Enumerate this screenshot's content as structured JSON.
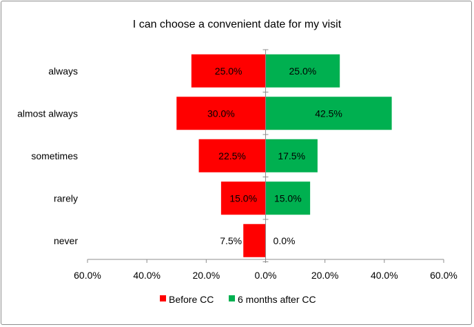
{
  "chart_data": {
    "type": "bar",
    "orientation": "horizontal-diverging",
    "title": "I can choose a convenient date for my visit",
    "categories": [
      "always",
      "almost always",
      "sometimes",
      "rarely",
      "never"
    ],
    "series": [
      {
        "name": "Before CC",
        "color": "#ff0000",
        "direction": "left",
        "values": [
          25.0,
          30.0,
          22.5,
          15.0,
          7.5
        ],
        "labels": [
          "25.0%",
          "30.0%",
          "22.5%",
          "15.0%",
          "7.5%"
        ]
      },
      {
        "name": "6 months after CC",
        "color": "#00b050",
        "direction": "right",
        "values": [
          25.0,
          42.5,
          17.5,
          15.0,
          0.0
        ],
        "labels": [
          "25.0%",
          "42.5%",
          "17.5%",
          "15.0%",
          "0.0%"
        ]
      }
    ],
    "xlim": [
      -60,
      60
    ],
    "xticks": [
      "60.0%",
      "40.0%",
      "20.0%",
      "0.0%",
      "20.0%",
      "40.0%",
      "60.0%"
    ],
    "xlabel": "",
    "ylabel": "",
    "grid": false,
    "legend_position": "bottom"
  }
}
